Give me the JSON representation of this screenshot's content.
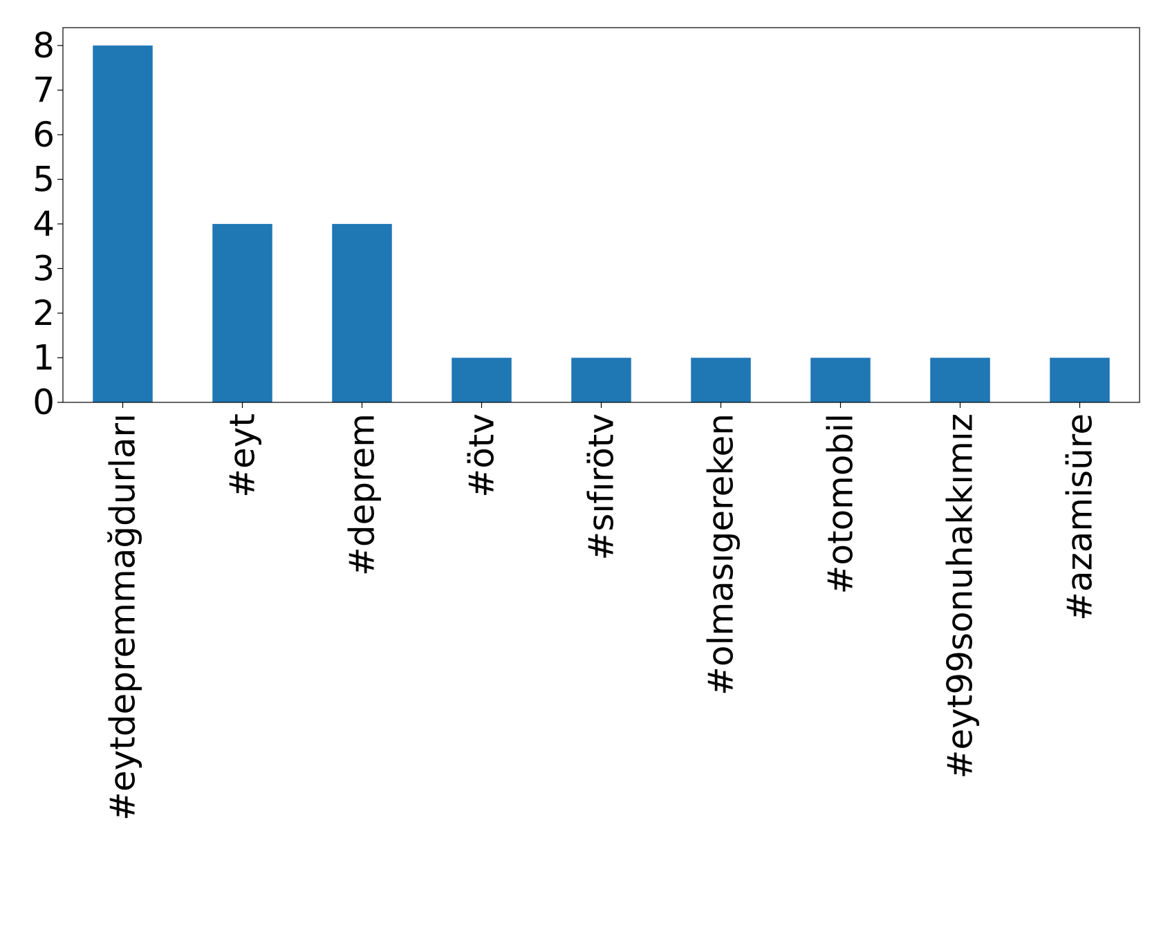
{
  "chart_data": {
    "type": "bar",
    "title": "",
    "xlabel": "",
    "ylabel": "",
    "categories": [
      "#eytdepremmağdurları",
      "#eyt",
      "#deprem",
      "#ötv",
      "#sıfırötv",
      "#olmasıgereken",
      "#otomobil",
      "#eyt99sonuhakkımız",
      "#azamisüre"
    ],
    "values": [
      8,
      4,
      4,
      1,
      1,
      1,
      1,
      1,
      1
    ],
    "ylim": [
      0,
      8.4
    ],
    "yticks": [
      0,
      1,
      2,
      3,
      4,
      5,
      6,
      7,
      8
    ],
    "bar_color": "#1f77b4",
    "grid": false,
    "legend": false,
    "xtick_rotation": "vertical"
  }
}
